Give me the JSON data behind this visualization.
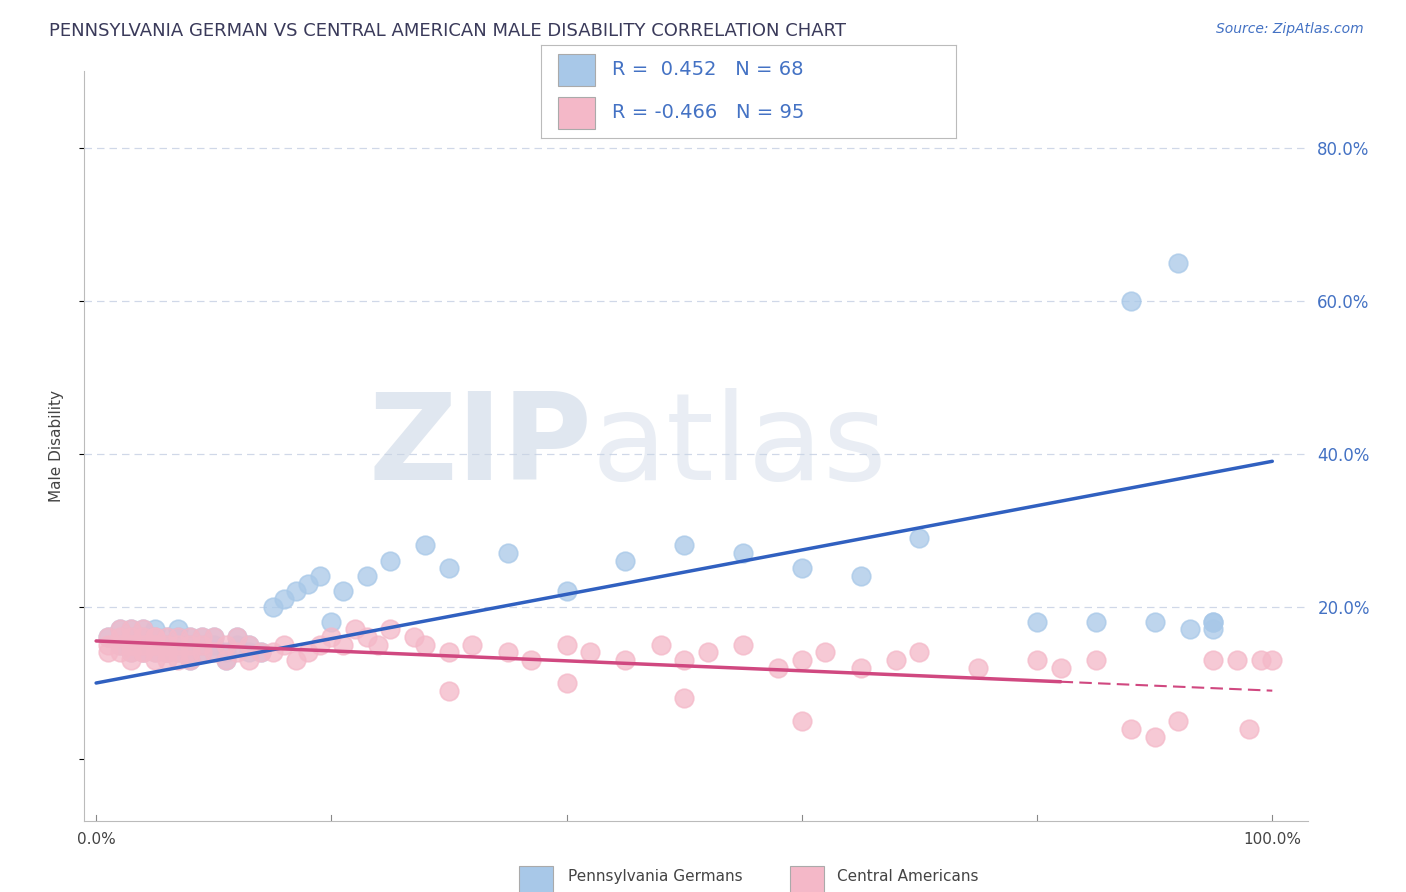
{
  "title": "PENNSYLVANIA GERMAN VS CENTRAL AMERICAN MALE DISABILITY CORRELATION CHART",
  "source": "Source: ZipAtlas.com",
  "ylabel": "Male Disability",
  "watermark_ZIP": "ZIP",
  "watermark_atlas": "atlas",
  "blue_R": 0.452,
  "blue_N": 68,
  "pink_R": -0.466,
  "pink_N": 95,
  "blue_scatter_color": "#a8c8e8",
  "pink_scatter_color": "#f4b8c8",
  "blue_line_color": "#3060c0",
  "pink_line_color": "#d04880",
  "legend_blue_label": "Pennsylvania Germans",
  "legend_pink_label": "Central Americans",
  "legend_text_color": "#4472c4",
  "right_axis_color": "#4472c4",
  "title_color": "#3a3a5a",
  "source_color": "#4472c4",
  "grid_color": "#d0d8e8",
  "blue_x": [
    1,
    2,
    2,
    3,
    3,
    3,
    4,
    4,
    4,
    4,
    5,
    5,
    5,
    5,
    5,
    6,
    6,
    6,
    6,
    7,
    7,
    7,
    7,
    8,
    8,
    8,
    8,
    9,
    9,
    9,
    10,
    10,
    10,
    11,
    11,
    12,
    12,
    13,
    13,
    14,
    15,
    16,
    17,
    18,
    19,
    20,
    21,
    23,
    25,
    28,
    30,
    35,
    40,
    45,
    50,
    55,
    60,
    65,
    70,
    80,
    85,
    88,
    90,
    92,
    93,
    95,
    95,
    95
  ],
  "blue_y": [
    16,
    15,
    17,
    14,
    16,
    17,
    15,
    16,
    14,
    17,
    15,
    16,
    14,
    17,
    15,
    14,
    16,
    15,
    14,
    15,
    14,
    16,
    17,
    13,
    15,
    14,
    16,
    15,
    14,
    16,
    14,
    16,
    15,
    14,
    13,
    16,
    15,
    14,
    15,
    14,
    20,
    21,
    22,
    23,
    24,
    18,
    22,
    24,
    26,
    28,
    25,
    27,
    22,
    26,
    28,
    27,
    25,
    24,
    29,
    18,
    18,
    60,
    18,
    65,
    17,
    18,
    17,
    18
  ],
  "pink_x": [
    1,
    1,
    1,
    2,
    2,
    2,
    2,
    3,
    3,
    3,
    3,
    3,
    3,
    4,
    4,
    4,
    4,
    4,
    5,
    5,
    5,
    5,
    5,
    5,
    6,
    6,
    6,
    6,
    6,
    7,
    7,
    7,
    7,
    8,
    8,
    8,
    8,
    9,
    9,
    9,
    10,
    10,
    11,
    11,
    12,
    12,
    13,
    13,
    14,
    15,
    16,
    17,
    18,
    19,
    20,
    21,
    22,
    23,
    24,
    25,
    27,
    28,
    30,
    32,
    35,
    37,
    40,
    42,
    45,
    48,
    50,
    52,
    55,
    58,
    60,
    62,
    65,
    68,
    70,
    75,
    80,
    82,
    85,
    88,
    90,
    92,
    95,
    97,
    98,
    99,
    100,
    30,
    40,
    50,
    60
  ],
  "pink_y": [
    15,
    16,
    14,
    15,
    16,
    14,
    17,
    15,
    14,
    16,
    15,
    13,
    17,
    14,
    16,
    15,
    14,
    17,
    16,
    15,
    14,
    16,
    13,
    15,
    14,
    16,
    13,
    15,
    14,
    15,
    14,
    16,
    13,
    14,
    16,
    15,
    13,
    15,
    14,
    16,
    14,
    16,
    15,
    13,
    14,
    16,
    13,
    15,
    14,
    14,
    15,
    13,
    14,
    15,
    16,
    15,
    17,
    16,
    15,
    17,
    16,
    15,
    14,
    15,
    14,
    13,
    15,
    14,
    13,
    15,
    13,
    14,
    15,
    12,
    13,
    14,
    12,
    13,
    14,
    12,
    13,
    12,
    13,
    4,
    3,
    5,
    13,
    13,
    4,
    13,
    13,
    9,
    10,
    8,
    5
  ],
  "blue_line_x0": 0,
  "blue_line_y0": 10,
  "blue_line_x1": 100,
  "blue_line_y1": 39,
  "pink_line_x0": 0,
  "pink_line_y0": 15.5,
  "pink_line_x1": 100,
  "pink_line_y1": 9,
  "pink_solid_end": 82,
  "ylim_min": -8,
  "ylim_max": 90,
  "xlim_min": -1,
  "xlim_max": 103,
  "yticks": [
    0,
    20,
    40,
    60,
    80
  ],
  "yticklabels": [
    "",
    "20.0%",
    "40.0%",
    "60.0%",
    "80.0%"
  ]
}
